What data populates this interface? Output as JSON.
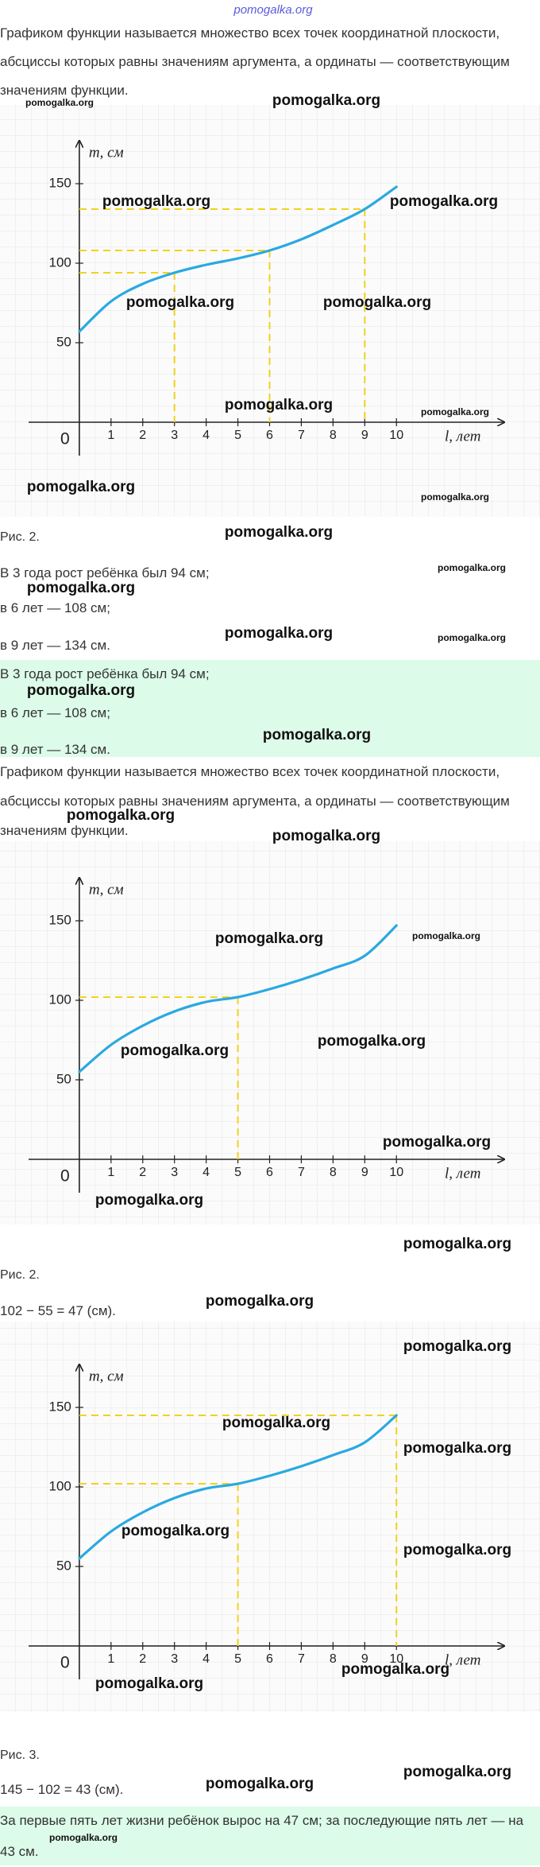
{
  "header": {
    "site": "pomogalka.org"
  },
  "watermark": "pomogalka.org",
  "definition": "Графиком функции называется множество всех точек координатной плоскости, абсциссы которых равны значениям аргумента, а ординаты — соответствующим значениям функции.",
  "answer_lines": [
    "В 3 года рост ребёнка был 94 см;",
    "в 6 лет — 108 см;",
    "в 9 лет — 134 см."
  ],
  "calc_1": "102 − 55 = 47 (см).",
  "calc_2": "145 − 102 = 43 (см).",
  "conclusion": "За первые пять лет жизни ребёнок вырос на 47 см; за последующие пять лет — на 43 см.",
  "chart_data": [
    {
      "type": "line",
      "caption": "Рис. 2.",
      "y_label": "m, см",
      "x_label": "l, лет",
      "origin": 0,
      "x": [
        0,
        1,
        2,
        3,
        4,
        5,
        6,
        7,
        8,
        9,
        10
      ],
      "series": [
        {
          "color": "#29a9e1",
          "values": [
            57,
            76,
            87,
            94,
            99,
            103,
            108,
            115,
            124,
            134,
            148
          ]
        }
      ],
      "guides": [
        {
          "x": 3,
          "y": 94
        },
        {
          "x": 6,
          "y": 108
        },
        {
          "x": 9,
          "y": 134
        }
      ],
      "guide_color": "#f2d21b",
      "xlim": [
        -1.6,
        13.4
      ],
      "ylim": [
        -21,
        177
      ],
      "xticks": [
        1,
        2,
        3,
        4,
        5,
        6,
        7,
        8,
        9,
        10
      ],
      "yticks": [
        50,
        100,
        150
      ],
      "grid": true
    },
    {
      "type": "line",
      "caption": "Рис. 2.",
      "y_label": "m, см",
      "x_label": "l, лет",
      "origin": 0,
      "x": [
        0,
        1,
        2,
        3,
        4,
        5,
        6,
        7,
        8,
        9,
        10
      ],
      "series": [
        {
          "color": "#29a9e1",
          "values": [
            55,
            72,
            84,
            93,
            99,
            102,
            107,
            113,
            120,
            128,
            147
          ]
        }
      ],
      "guides": [
        {
          "x": 5,
          "y": 102
        }
      ],
      "guide_color": "#f2d21b",
      "xlim": [
        -1.6,
        13.4
      ],
      "ylim": [
        -21,
        177
      ],
      "xticks": [
        1,
        2,
        3,
        4,
        5,
        6,
        7,
        8,
        9,
        10
      ],
      "yticks": [
        50,
        100,
        150
      ],
      "grid": true
    },
    {
      "type": "line",
      "caption": "Рис. 3.",
      "y_label": "m, см",
      "x_label": "l, лет",
      "origin": 0,
      "x": [
        0,
        1,
        2,
        3,
        4,
        5,
        6,
        7,
        8,
        9,
        10
      ],
      "series": [
        {
          "color": "#29a9e1",
          "values": [
            55,
            72,
            84,
            93,
            99,
            102,
            107,
            113,
            120,
            128,
            145
          ]
        }
      ],
      "guides": [
        {
          "x": 5,
          "y": 102
        },
        {
          "x": 10,
          "y": 145
        }
      ],
      "guide_color": "#f2d21b",
      "xlim": [
        -1.6,
        13.4
      ],
      "ylim": [
        -21,
        177
      ],
      "xticks": [
        1,
        2,
        3,
        4,
        5,
        6,
        7,
        8,
        9,
        10
      ],
      "yticks": [
        50,
        100,
        150
      ],
      "grid": true
    }
  ]
}
